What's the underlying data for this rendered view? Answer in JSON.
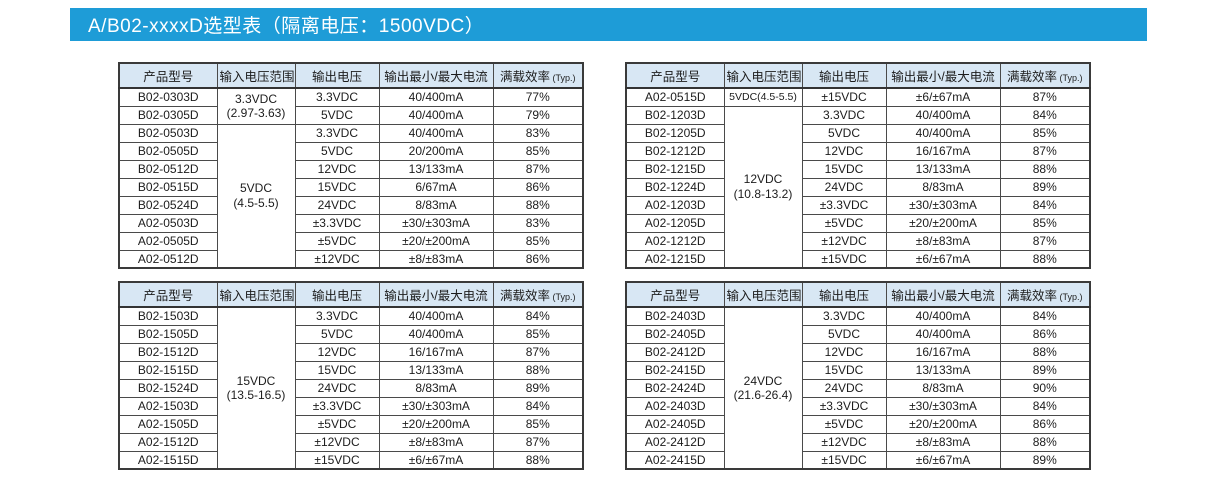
{
  "banner": {
    "title": "A/B02-xxxxD选型表（隔离电压：1500VDC）",
    "background_color": "#1e9cd7",
    "text_color": "#ffffff"
  },
  "colors": {
    "header_bg": "#d8e7f4",
    "border": "#4a4a4a",
    "text": "#1c1c1c"
  },
  "columns": [
    {
      "label": "产品型号"
    },
    {
      "label": "输入电压范围"
    },
    {
      "label": "输出电压"
    },
    {
      "label": "输出最小/最大电流"
    },
    {
      "label": "满载效率",
      "suffix": "(Typ.)"
    }
  ],
  "tables": [
    {
      "position": "top-left",
      "rows": [
        {
          "model": "B02-0303D",
          "input": {
            "lines": [
              "3.3VDC",
              "(2.97-3.63)"
            ],
            "rowspan": 2
          },
          "output": "3.3VDC",
          "current": "40/400mA",
          "efficiency": "77%"
        },
        {
          "model": "B02-0305D",
          "output": "5VDC",
          "current": "40/400mA",
          "efficiency": "79%"
        },
        {
          "model": "B02-0503D",
          "input": {
            "lines": [
              "5VDC",
              "(4.5-5.5)"
            ],
            "rowspan": 8
          },
          "output": "3.3VDC",
          "current": "40/400mA",
          "efficiency": "83%"
        },
        {
          "model": "B02-0505D",
          "output": "5VDC",
          "current": "20/200mA",
          "efficiency": "85%"
        },
        {
          "model": "B02-0512D",
          "output": "12VDC",
          "current": "13/133mA",
          "efficiency": "87%"
        },
        {
          "model": "B02-0515D",
          "output": "15VDC",
          "current": "6/67mA",
          "efficiency": "86%"
        },
        {
          "model": "B02-0524D",
          "output": "24VDC",
          "current": "8/83mA",
          "efficiency": "88%"
        },
        {
          "model": "A02-0503D",
          "output": "±3.3VDC",
          "current": "±30/±303mA",
          "efficiency": "83%"
        },
        {
          "model": "A02-0505D",
          "output": "±5VDC",
          "current": "±20/±200mA",
          "efficiency": "85%"
        },
        {
          "model": "A02-0512D",
          "output": "±12VDC",
          "current": "±8/±83mA",
          "efficiency": "86%"
        }
      ]
    },
    {
      "position": "top-right",
      "rows": [
        {
          "model": "A02-0515D",
          "input": {
            "lines": [
              "5VDC(4.5-5.5)"
            ],
            "rowspan": 1
          },
          "output": "±15VDC",
          "current": "±6/±67mA",
          "efficiency": "87%"
        },
        {
          "model": "B02-1203D",
          "input": {
            "lines": [
              "12VDC",
              "(10.8-13.2)"
            ],
            "rowspan": 9
          },
          "output": "3.3VDC",
          "current": "40/400mA",
          "efficiency": "84%"
        },
        {
          "model": "B02-1205D",
          "output": "5VDC",
          "current": "40/400mA",
          "efficiency": "85%"
        },
        {
          "model": "B02-1212D",
          "output": "12VDC",
          "current": "16/167mA",
          "efficiency": "87%"
        },
        {
          "model": "B02-1215D",
          "output": "15VDC",
          "current": "13/133mA",
          "efficiency": "88%"
        },
        {
          "model": "B02-1224D",
          "output": "24VDC",
          "current": "8/83mA",
          "efficiency": "89%"
        },
        {
          "model": "A02-1203D",
          "output": "±3.3VDC",
          "current": "±30/±303mA",
          "efficiency": "84%"
        },
        {
          "model": "A02-1205D",
          "output": "±5VDC",
          "current": "±20/±200mA",
          "efficiency": "85%"
        },
        {
          "model": "A02-1212D",
          "output": "±12VDC",
          "current": "±8/±83mA",
          "efficiency": "87%"
        },
        {
          "model": "A02-1215D",
          "output": "±15VDC",
          "current": "±6/±67mA",
          "efficiency": "88%"
        }
      ]
    },
    {
      "position": "bottom-left",
      "rows": [
        {
          "model": "B02-1503D",
          "input": {
            "lines": [
              "15VDC",
              "(13.5-16.5)"
            ],
            "rowspan": 9
          },
          "output": "3.3VDC",
          "current": "40/400mA",
          "efficiency": "84%"
        },
        {
          "model": "B02-1505D",
          "output": "5VDC",
          "current": "40/400mA",
          "efficiency": "85%"
        },
        {
          "model": "B02-1512D",
          "output": "12VDC",
          "current": "16/167mA",
          "efficiency": "87%"
        },
        {
          "model": "B02-1515D",
          "output": "15VDC",
          "current": "13/133mA",
          "efficiency": "88%"
        },
        {
          "model": "B02-1524D",
          "output": "24VDC",
          "current": "8/83mA",
          "efficiency": "89%"
        },
        {
          "model": "A02-1503D",
          "output": "±3.3VDC",
          "current": "±30/±303mA",
          "efficiency": "84%"
        },
        {
          "model": "A02-1505D",
          "output": "±5VDC",
          "current": "±20/±200mA",
          "efficiency": "85%"
        },
        {
          "model": "A02-1512D",
          "output": "±12VDC",
          "current": "±8/±83mA",
          "efficiency": "87%"
        },
        {
          "model": "A02-1515D",
          "output": "±15VDC",
          "current": "±6/±67mA",
          "efficiency": "88%"
        }
      ]
    },
    {
      "position": "bottom-right",
      "rows": [
        {
          "model": "B02-2403D",
          "input": {
            "lines": [
              "24VDC",
              "(21.6-26.4)"
            ],
            "rowspan": 9
          },
          "output": "3.3VDC",
          "current": "40/400mA",
          "efficiency": "84%"
        },
        {
          "model": "B02-2405D",
          "output": "5VDC",
          "current": "40/400mA",
          "efficiency": "86%"
        },
        {
          "model": "B02-2412D",
          "output": "12VDC",
          "current": "16/167mA",
          "efficiency": "88%"
        },
        {
          "model": "B02-2415D",
          "output": "15VDC",
          "current": "13/133mA",
          "efficiency": "89%"
        },
        {
          "model": "B02-2424D",
          "output": "24VDC",
          "current": "8/83mA",
          "efficiency": "90%"
        },
        {
          "model": "A02-2403D",
          "output": "±3.3VDC",
          "current": "±30/±303mA",
          "efficiency": "84%"
        },
        {
          "model": "A02-2405D",
          "output": "±5VDC",
          "current": "±20/±200mA",
          "efficiency": "86%"
        },
        {
          "model": "A02-2412D",
          "output": "±12VDC",
          "current": "±8/±83mA",
          "efficiency": "88%"
        },
        {
          "model": "A02-2415D",
          "output": "±15VDC",
          "current": "±6/±67mA",
          "efficiency": "89%"
        }
      ]
    }
  ]
}
